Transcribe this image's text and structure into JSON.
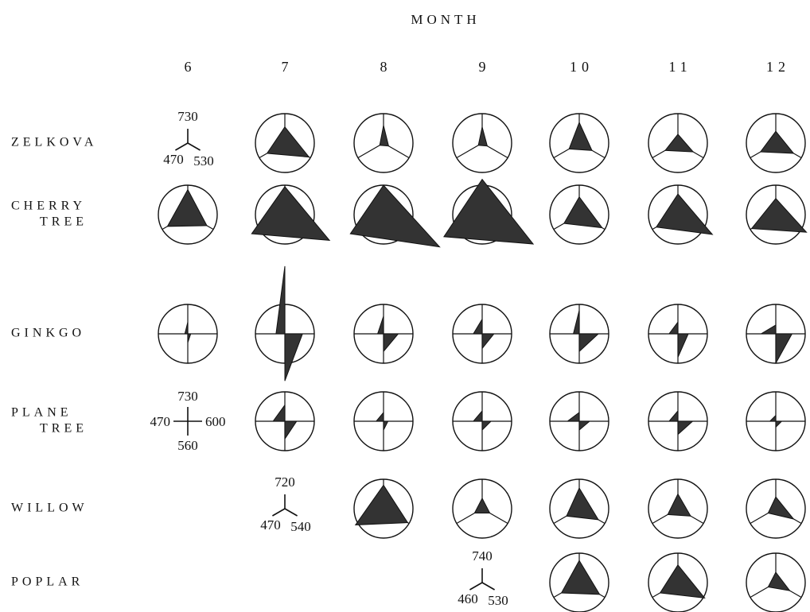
{
  "title": "MONTH",
  "months": [
    "6",
    "7",
    "8",
    "9",
    "10",
    "11",
    "12"
  ],
  "rows": [
    {
      "name": [
        "ZELKOVA"
      ],
      "cells": [
        {
          "key": [
            730,
            470,
            530
          ]
        },
        {
          "r": [
            0.55,
            0.7,
            0.95
          ]
        },
        {
          "r": [
            0.6,
            0.15,
            0.2
          ]
        },
        {
          "r": [
            0.55,
            0.15,
            0.2
          ]
        },
        {
          "r": [
            0.7,
            0.4,
            0.5
          ]
        },
        {
          "r": [
            0.3,
            0.5,
            0.6
          ]
        },
        {
          "r": [
            0.4,
            0.6,
            0.7
          ]
        }
      ]
    },
    {
      "name": [
        "CHERRY",
        "TREE"
      ],
      "cells": [
        {
          "r": [
            0.85,
            0.8,
            0.75
          ]
        },
        {
          "r": [
            0.95,
            1.3,
            1.75
          ]
        },
        {
          "r": [
            1.0,
            1.3,
            2.2
          ]
        },
        {
          "r": [
            1.2,
            1.5,
            2.0
          ]
        },
        {
          "r": [
            0.6,
            0.6,
            0.9
          ]
        },
        {
          "r": [
            0.7,
            0.85,
            1.35
          ]
        },
        {
          "r": [
            0.55,
            0.95,
            1.2
          ]
        }
      ]
    },
    {
      "name": [
        "GINKGO"
      ],
      "cells": [
        {
          "r": [
            0.4,
            0.1,
            0.1,
            0.3
          ]
        },
        {
          "r": [
            2.3,
            0.3,
            0.6,
            1.6
          ]
        },
        {
          "r": [
            0.6,
            0.2,
            0.5,
            0.6
          ]
        },
        {
          "r": [
            0.5,
            0.3,
            0.4,
            0.5
          ]
        },
        {
          "r": [
            0.8,
            0.2,
            0.65,
            0.6
          ]
        },
        {
          "r": [
            0.4,
            0.3,
            0.35,
            0.8
          ]
        },
        {
          "r": [
            0.3,
            0.5,
            0.55,
            1.0
          ]
        }
      ]
    },
    {
      "name": [
        "PLANE",
        "TREE"
      ],
      "cells": [
        {
          "key": [
            730,
            470,
            600,
            560
          ]
        },
        {
          "r": [
            0.55,
            0.4,
            0.4,
            0.6
          ]
        },
        {
          "r": [
            0.3,
            0.25,
            0.15,
            0.3
          ]
        },
        {
          "r": [
            0.35,
            0.3,
            0.3,
            0.3
          ]
        },
        {
          "r": [
            0.3,
            0.4,
            0.35,
            0.3
          ]
        },
        {
          "r": [
            0.35,
            0.3,
            0.5,
            0.45
          ]
        },
        {
          "r": [
            0.2,
            0.2,
            0.2,
            0.2
          ]
        }
      ]
    },
    {
      "name": [
        "WILLOW"
      ],
      "cells": [
        null,
        {
          "key": [
            720,
            470,
            540
          ]
        },
        {
          "r": [
            0.8,
            1.1,
            0.95
          ]
        },
        {
          "r": [
            0.35,
            0.3,
            0.3
          ]
        },
        {
          "r": [
            0.7,
            0.5,
            0.75
          ]
        },
        {
          "r": [
            0.5,
            0.4,
            0.5
          ]
        },
        {
          "r": [
            0.4,
            0.3,
            0.7
          ]
        }
      ]
    },
    {
      "name": [
        "POPLAR"
      ],
      "cells": [
        null,
        null,
        null,
        {
          "key": [
            740,
            460,
            530
          ]
        },
        {
          "r": [
            0.75,
            0.7,
            0.8
          ]
        },
        {
          "r": [
            0.6,
            0.7,
            1.05
          ]
        },
        {
          "r": [
            0.35,
            0.3,
            0.55
          ]
        }
      ]
    }
  ]
}
